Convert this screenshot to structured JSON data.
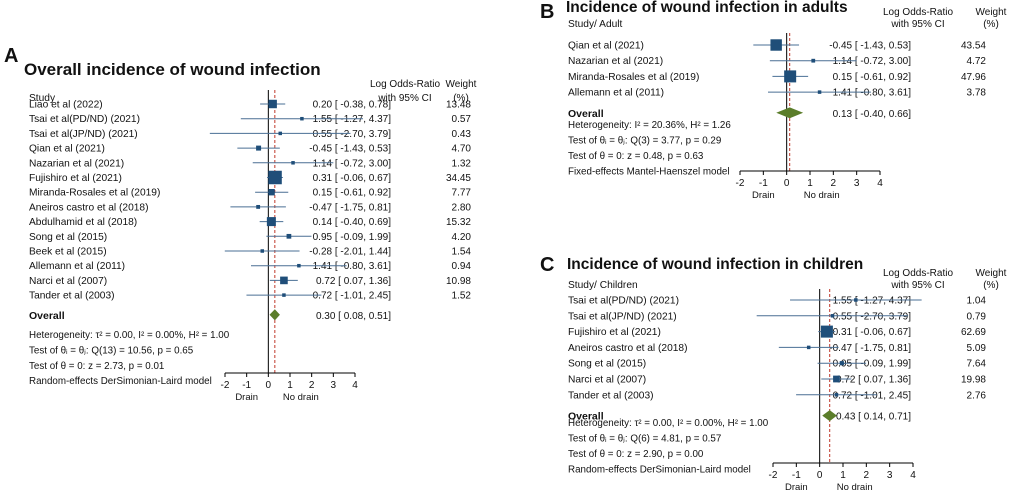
{
  "colors": {
    "marker": "#1f4e79",
    "ci_line": "#4a6f94",
    "diamond": "#5b7d2a",
    "ref_line": "#c0392b",
    "axis": "#000000"
  },
  "chart_data": [
    {
      "type": "forest",
      "panel": "A",
      "title": "Overall incidence of wound infection",
      "col_study": "Study",
      "col_effect": [
        "Log Odds-Ratio",
        "with 95% CI"
      ],
      "col_weight": [
        "Weight",
        "(%)"
      ],
      "xlim": [
        -2,
        4
      ],
      "ticks": [
        "-2",
        "-1",
        "0",
        "1",
        "2",
        "3",
        "4"
      ],
      "xlabels": [
        "Drain",
        "No drain"
      ],
      "studies": [
        {
          "name": "Liao et al (2022)",
          "est": 0.2,
          "lo": -0.38,
          "hi": 0.78,
          "ci": "0.20 [  -0.38, 0.78]",
          "weight": "13.48",
          "w": 13.48
        },
        {
          "name": "Tsai  et al(PD/ND) (2021)",
          "est": 1.55,
          "lo": -1.27,
          "hi": 4.37,
          "ci": "1.55 [  -1.27, 4.37]",
          "weight": "0.57",
          "w": 0.57
        },
        {
          "name": "Tsai  et al(JP/ND) (2021)",
          "est": 0.55,
          "lo": -2.7,
          "hi": 3.79,
          "ci": "0.55 [  -2.70, 3.79]",
          "weight": "0.43",
          "w": 0.43
        },
        {
          "name": "Qian et al (2021)",
          "est": -0.45,
          "lo": -1.43,
          "hi": 0.53,
          "ci": "-0.45 [  -1.43, 0.53]",
          "weight": "4.70",
          "w": 4.7
        },
        {
          "name": "Nazarian et al (2021)",
          "est": 1.14,
          "lo": -0.72,
          "hi": 3.0,
          "ci": "1.14 [  -0.72, 3.00]",
          "weight": "1.32",
          "w": 1.32
        },
        {
          "name": "Fujishiro et al (2021)",
          "est": 0.31,
          "lo": -0.06,
          "hi": 0.67,
          "ci": "0.31 [  -0.06, 0.67]",
          "weight": "34.45",
          "w": 34.45
        },
        {
          "name": "Miranda-Rosales et al (2019)",
          "est": 0.15,
          "lo": -0.61,
          "hi": 0.92,
          "ci": "0.15 [  -0.61, 0.92]",
          "weight": "7.77",
          "w": 7.77
        },
        {
          "name": "Aneiros castro et al (2018)",
          "est": -0.47,
          "lo": -1.75,
          "hi": 0.81,
          "ci": "-0.47 [  -1.75, 0.81]",
          "weight": "2.80",
          "w": 2.8
        },
        {
          "name": "Abdulhamid et al (2018)",
          "est": 0.14,
          "lo": -0.4,
          "hi": 0.69,
          "ci": "0.14 [  -0.40, 0.69]",
          "weight": "15.32",
          "w": 15.32
        },
        {
          "name": "Song et al (2015)",
          "est": 0.95,
          "lo": -0.09,
          "hi": 1.99,
          "ci": "0.95 [  -0.09, 1.99]",
          "weight": "4.20",
          "w": 4.2
        },
        {
          "name": "Beek et al (2015)",
          "est": -0.28,
          "lo": -2.01,
          "hi": 1.44,
          "ci": "-0.28 [  -2.01, 1.44]",
          "weight": "1.54",
          "w": 1.54
        },
        {
          "name": "Allemann et al (2011)",
          "est": 1.41,
          "lo": -0.8,
          "hi": 3.61,
          "ci": "1.41 [  -0.80, 3.61]",
          "weight": "0.94",
          "w": 0.94
        },
        {
          "name": "Narci et al (2007)",
          "est": 0.72,
          "lo": 0.07,
          "hi": 1.36,
          "ci": "0.72 [   0.07, 1.36]",
          "weight": "10.98",
          "w": 10.98
        },
        {
          "name": "Tander et al (2003)",
          "est": 0.72,
          "lo": -1.01,
          "hi": 2.45,
          "ci": "0.72 [  -1.01, 2.45]",
          "weight": "1.52",
          "w": 1.52
        }
      ],
      "overall": {
        "label": "Overall",
        "est": 0.3,
        "lo": 0.08,
        "hi": 0.51,
        "ci": "0.30 [   0.08, 0.51]"
      },
      "notes": [
        "Heterogeneity: τ² = 0.00, I² = 0.00%, H² = 1.00",
        "Test of θᵢ = θⱼ: Q(13) = 10.56, p = 0.65",
        "Test of θ = 0: z = 2.73, p = 0.01",
        "Random-effects DerSimonian-Laird model"
      ]
    },
    {
      "type": "forest",
      "panel": "B",
      "title": "Incidence of wound infection in adults",
      "col_study": "Study/ Adult",
      "col_effect": [
        "Log Odds-Ratio",
        "with 95% CI"
      ],
      "col_weight": [
        "Weight",
        "(%)"
      ],
      "xlim": [
        -2,
        4
      ],
      "ticks": [
        "-2",
        "-1",
        "0",
        "1",
        "2",
        "3",
        "4"
      ],
      "xlabels": [
        "Drain",
        "No drain"
      ],
      "studies": [
        {
          "name": "Qian et al (2021)",
          "est": -0.45,
          "lo": -1.43,
          "hi": 0.53,
          "ci": "-0.45 [  -1.43, 0.53]",
          "weight": "43.54",
          "w": 43.54
        },
        {
          "name": "Nazarian et al (2021)",
          "est": 1.14,
          "lo": -0.72,
          "hi": 3.0,
          "ci": "1.14 [  -0.72, 3.00]",
          "weight": "4.72",
          "w": 4.72
        },
        {
          "name": "Miranda-Rosales et al (2019)",
          "est": 0.15,
          "lo": -0.61,
          "hi": 0.92,
          "ci": "0.15 [  -0.61, 0.92]",
          "weight": "47.96",
          "w": 47.96
        },
        {
          "name": "Allemann et al (2011)",
          "est": 1.41,
          "lo": -0.8,
          "hi": 3.61,
          "ci": "1.41 [  -0.80, 3.61]",
          "weight": "3.78",
          "w": 3.78
        }
      ],
      "overall": {
        "label": "Overall",
        "est": 0.13,
        "lo": -0.4,
        "hi": 0.66,
        "ci": "0.13 [  -0.40, 0.66]"
      },
      "notes": [
        "Heterogeneity: I² = 20.36%, H² = 1.26",
        "Test of θᵢ = θⱼ: Q(3) = 3.77, p = 0.29",
        "Test of θ = 0: z = 0.48, p = 0.63",
        "Fixed-effects Mantel-Haenszel model"
      ]
    },
    {
      "type": "forest",
      "panel": "C",
      "title": "Incidence of wound infection in children",
      "col_study": "Study/ Children",
      "col_effect": [
        "Log Odds-Ratio",
        "with 95% CI"
      ],
      "col_weight": [
        "Weight",
        "(%)"
      ],
      "xlim": [
        -2,
        4
      ],
      "ticks": [
        "-2",
        "-1",
        "0",
        "1",
        "2",
        "3",
        "4"
      ],
      "xlabels": [
        "Drain",
        "No drain"
      ],
      "studies": [
        {
          "name": "Tsai  et al(PD/ND) (2021)",
          "est": 1.55,
          "lo": -1.27,
          "hi": 4.37,
          "ci": "1.55 [  -1.27, 4.37]",
          "weight": "1.04",
          "w": 1.04
        },
        {
          "name": "Tsai  et al(JP/ND) (2021)",
          "est": 0.55,
          "lo": -2.7,
          "hi": 3.79,
          "ci": "0.55 [  -2.70, 3.79]",
          "weight": "0.79",
          "w": 0.79
        },
        {
          "name": "Fujishiro et al (2021)",
          "est": 0.31,
          "lo": -0.06,
          "hi": 0.67,
          "ci": "0.31 [  -0.06, 0.67]",
          "weight": "62.69",
          "w": 62.69
        },
        {
          "name": "Aneiros castro et al (2018)",
          "est": -0.47,
          "lo": -1.75,
          "hi": 0.81,
          "ci": "-0.47 [  -1.75, 0.81]",
          "weight": "5.09",
          "w": 5.09
        },
        {
          "name": "Song et al (2015)",
          "est": 0.95,
          "lo": -0.09,
          "hi": 1.99,
          "ci": "0.95 [  -0.09, 1.99]",
          "weight": "7.64",
          "w": 7.64
        },
        {
          "name": "Narci et al (2007)",
          "est": 0.72,
          "lo": 0.07,
          "hi": 1.36,
          "ci": "0.72 [   0.07, 1.36]",
          "weight": "19.98",
          "w": 19.98
        },
        {
          "name": "Tander et al (2003)",
          "est": 0.72,
          "lo": -1.01,
          "hi": 2.45,
          "ci": "0.72 [  -1.01, 2.45]",
          "weight": "2.76",
          "w": 2.76
        }
      ],
      "overall": {
        "label": "Overall",
        "est": 0.43,
        "lo": 0.14,
        "hi": 0.71,
        "ci": "0.43 [   0.14, 0.71]"
      },
      "notes": [
        "Heterogeneity: τ² = 0.00, I² = 0.00%, H² = 1.00",
        "Test of θᵢ = θⱼ: Q(6) = 4.81, p = 0.57",
        "Test of θ = 0: z = 2.90, p = 0.00",
        "Random-effects DerSimonian-Laird model"
      ]
    }
  ]
}
